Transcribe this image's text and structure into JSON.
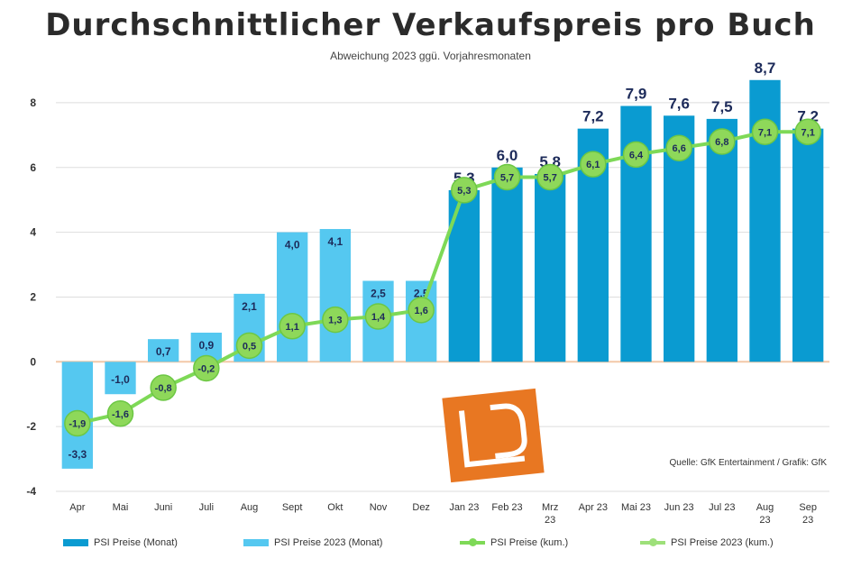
{
  "title": "Durchschnittlicher Verkaufspreis pro Buch",
  "subtitle": "Abweichung 2023 ggü. Vorjahresmonaten",
  "source": "Quelle: GfK Entertainment / Grafik: GfK",
  "colors": {
    "bar_2023": "#0a9bd1",
    "bar_2022": "#55c8f0",
    "line": "#7ed957",
    "line_marker": "#8ed85a",
    "zero_line": "#f3c9a8",
    "grid": "#dddddd",
    "logo": "#e87722"
  },
  "legend": [
    {
      "label": "PSI Preise (Monat)",
      "kind": "bar",
      "color": "#0a9bd1"
    },
    {
      "label": "PSI Preise 2023 (Monat)",
      "kind": "bar",
      "color": "#55c8f0"
    },
    {
      "label": "PSI Preise (kum.)",
      "kind": "line",
      "color": "#7ed957"
    },
    {
      "label": "PSI Preise 2023 (kum.)",
      "kind": "line",
      "color": "#9ee07a"
    }
  ],
  "chart_data": {
    "type": "bar",
    "title": "Durchschnittlicher Verkaufspreis pro Buch",
    "categories": [
      "Apr",
      "Mai",
      "Juni",
      "Juli",
      "Aug",
      "Sept",
      "Okt",
      "Nov",
      "Dez",
      "Jan 23",
      "Feb 23",
      "Mrz 23",
      "Apr 23",
      "Mai 23",
      "Jun 23",
      "Jul 23",
      "Aug 23",
      "Sep 23"
    ],
    "category_lines": [
      [
        "Apr"
      ],
      [
        "Mai"
      ],
      [
        "Juni"
      ],
      [
        "Juli"
      ],
      [
        "Aug"
      ],
      [
        "Sept"
      ],
      [
        "Okt"
      ],
      [
        "Nov"
      ],
      [
        "Dez"
      ],
      [
        "Jan 23"
      ],
      [
        "Feb 23"
      ],
      [
        "Mrz",
        "23"
      ],
      [
        "Apr 23"
      ],
      [
        "Mai 23"
      ],
      [
        "Jun 23"
      ],
      [
        "Jul 23"
      ],
      [
        "Aug",
        "23"
      ],
      [
        "Sep",
        "23"
      ]
    ],
    "series": [
      {
        "name": "PSI Preise (Monat)",
        "kind": "bar",
        "values": [
          null,
          null,
          null,
          null,
          null,
          null,
          null,
          null,
          null,
          5.3,
          6.0,
          5.8,
          7.2,
          7.9,
          7.6,
          7.5,
          8.7,
          7.2
        ]
      },
      {
        "name": "PSI Preise 2023 (Monat)",
        "kind": "bar",
        "values": [
          -3.3,
          -1.0,
          0.7,
          0.9,
          2.1,
          4.0,
          4.1,
          2.5,
          2.5,
          null,
          null,
          null,
          null,
          null,
          null,
          null,
          null,
          null
        ]
      },
      {
        "name": "PSI Preise (kum.)",
        "kind": "line",
        "values": [
          -1.9,
          -1.6,
          -0.8,
          -0.2,
          0.5,
          1.1,
          1.3,
          1.4,
          1.6,
          5.3,
          5.7,
          5.7,
          6.1,
          6.4,
          6.6,
          6.8,
          7.1,
          7.1
        ]
      }
    ],
    "ylim": [
      -4,
      9
    ],
    "yticks": [
      -4,
      -2,
      0,
      2,
      4,
      6,
      8
    ],
    "value_labels_bars": [
      "-3,3",
      "-1,0",
      "0,7",
      "0,9",
      "2,1",
      "4,0",
      "4,1",
      "2,5",
      "2,5",
      "5,3",
      "6,0",
      "5,8",
      "7,2",
      "7,9",
      "7,6",
      "7,5",
      "8,7",
      "7,2"
    ],
    "value_labels_line": [
      "-1,9",
      "-1,6",
      "-0,8",
      "-0,2",
      "0,5",
      "1,1",
      "1,3",
      "1,4",
      "1,6",
      "5,3",
      "5,7",
      "5,7",
      "6,1",
      "6,4",
      "6,6",
      "6,8",
      "7,1",
      "7,1"
    ],
    "grid": true,
    "legend_position": "bottom"
  }
}
